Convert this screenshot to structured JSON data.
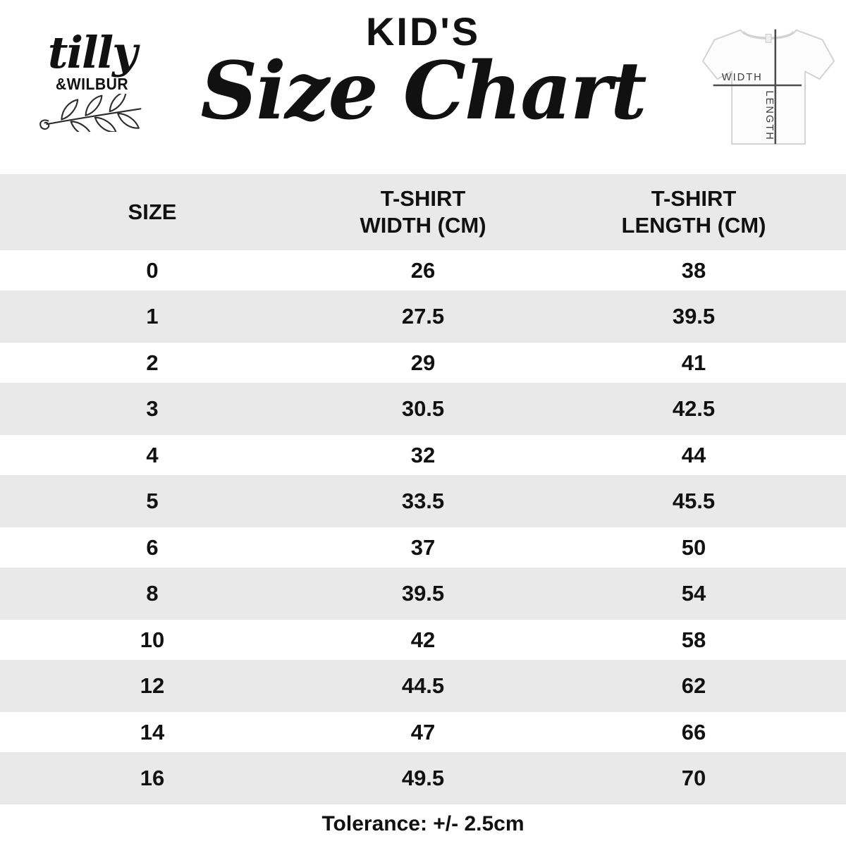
{
  "brand": {
    "name_script": "tilly",
    "name_caps": "&WILBUR"
  },
  "header": {
    "title_top": "KID'S",
    "title_main": "Size Chart"
  },
  "tshirt_diagram": {
    "width_label": "WIDTH",
    "length_label": "LENGTH"
  },
  "table": {
    "header_size": "SIZE",
    "header_width": "T-SHIRT\nWIDTH (CM)",
    "header_length": "T-SHIRT\nLENGTH (CM)",
    "rows": [
      {
        "size": "0",
        "width": "26",
        "length": "38"
      },
      {
        "size": "1",
        "width": "27.5",
        "length": "39.5"
      },
      {
        "size": "2",
        "width": "29",
        "length": "41"
      },
      {
        "size": "3",
        "width": "30.5",
        "length": "42.5"
      },
      {
        "size": "4",
        "width": "32",
        "length": "44"
      },
      {
        "size": "5",
        "width": "33.5",
        "length": "45.5"
      },
      {
        "size": "6",
        "width": "37",
        "length": "50"
      },
      {
        "size": "8",
        "width": "39.5",
        "length": "54"
      },
      {
        "size": "10",
        "width": "42",
        "length": "58"
      },
      {
        "size": "12",
        "width": "44.5",
        "length": "62"
      },
      {
        "size": "14",
        "width": "47",
        "length": "66"
      },
      {
        "size": "16",
        "width": "49.5",
        "length": "70"
      }
    ]
  },
  "footer": {
    "tolerance": "Tolerance: +/- 2.5cm"
  },
  "colors": {
    "row_alt_gray": "#e9e9e9",
    "text": "#111111",
    "diagram_line": "#4d4d4d"
  },
  "chart_data": {
    "type": "table",
    "title": "KID'S Size Chart",
    "columns": [
      "SIZE",
      "T-SHIRT WIDTH (CM)",
      "T-SHIRT LENGTH (CM)"
    ],
    "categories": [
      "0",
      "1",
      "2",
      "3",
      "4",
      "5",
      "6",
      "8",
      "10",
      "12",
      "14",
      "16"
    ],
    "series": [
      {
        "name": "T-SHIRT WIDTH (CM)",
        "values": [
          26,
          27.5,
          29,
          30.5,
          32,
          33.5,
          37,
          39.5,
          42,
          44.5,
          47,
          49.5
        ]
      },
      {
        "name": "T-SHIRT LENGTH (CM)",
        "values": [
          38,
          39.5,
          41,
          42.5,
          44,
          45.5,
          50,
          54,
          58,
          62,
          66,
          70
        ]
      }
    ],
    "footnote": "Tolerance: +/- 2.5cm"
  }
}
